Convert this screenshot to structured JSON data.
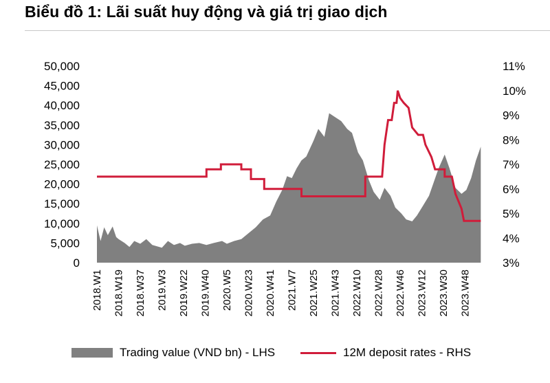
{
  "title": "Biểu đồ 1: Lãi suất huy động và giá trị giao dịch",
  "chart_data": {
    "type": "area",
    "legend_position": "bottom",
    "grid": false,
    "left_axis": {
      "min": 0,
      "max": 50000,
      "ticks": [
        "0",
        "5,000",
        "10,000",
        "15,000",
        "20,000",
        "25,000",
        "30,000",
        "35,000",
        "40,000",
        "45,000",
        "50,000"
      ]
    },
    "right_axis": {
      "min": 3,
      "max": 11,
      "ticks": [
        "3%",
        "4%",
        "5%",
        "6%",
        "7%",
        "8%",
        "9%",
        "10%",
        "11%"
      ]
    },
    "x_tick_labels": [
      "2018.W1",
      "2018.W19",
      "2018.W37",
      "2019.W3",
      "2019.W22",
      "2019.W40",
      "2020.W5",
      "2020.W23",
      "2020.W41",
      "2021.W7",
      "2021.W25",
      "2021.W43",
      "2022.W10",
      "2022.W28",
      "2022.W46",
      "2023.W12",
      "2023.W30",
      "2023.W48"
    ],
    "series": [
      {
        "name": "Trading value (VND bn) - LHS",
        "axis": "left",
        "kind": "area",
        "color": "#808080",
        "points": [
          [
            "2018.W1",
            9500
          ],
          [
            "2018.W4",
            5500
          ],
          [
            "2018.W7",
            9000
          ],
          [
            "2018.W10",
            7000
          ],
          [
            "2018.W14",
            9200
          ],
          [
            "2018.W17",
            6500
          ],
          [
            "2018.W19",
            6000
          ],
          [
            "2018.W24",
            5000
          ],
          [
            "2018.W28",
            4000
          ],
          [
            "2018.W32",
            5500
          ],
          [
            "2018.W37",
            4800
          ],
          [
            "2018.W42",
            6000
          ],
          [
            "2018.W47",
            4500
          ],
          [
            "2019.W3",
            3800
          ],
          [
            "2019.W8",
            5500
          ],
          [
            "2019.W13",
            4500
          ],
          [
            "2019.W18",
            5000
          ],
          [
            "2019.W22",
            4300
          ],
          [
            "2019.W28",
            4800
          ],
          [
            "2019.W34",
            5000
          ],
          [
            "2019.W40",
            4500
          ],
          [
            "2019.W46",
            5000
          ],
          [
            "2020.W1",
            5500
          ],
          [
            "2020.W5",
            4800
          ],
          [
            "2020.W11",
            5500
          ],
          [
            "2020.W17",
            6000
          ],
          [
            "2020.W23",
            7500
          ],
          [
            "2020.W29",
            9000
          ],
          [
            "2020.W35",
            11000
          ],
          [
            "2020.W41",
            12000
          ],
          [
            "2020.W46",
            15500
          ],
          [
            "2020.W51",
            18500
          ],
          [
            "2021.W3",
            22000
          ],
          [
            "2021.W7",
            21500
          ],
          [
            "2021.W11",
            24000
          ],
          [
            "2021.W15",
            26000
          ],
          [
            "2021.W19",
            27000
          ],
          [
            "2021.W25",
            31000
          ],
          [
            "2021.W29",
            34000
          ],
          [
            "2021.W34",
            32000
          ],
          [
            "2021.W38",
            38000
          ],
          [
            "2021.W43",
            37000
          ],
          [
            "2021.W48",
            36000
          ],
          [
            "2022.W1",
            34000
          ],
          [
            "2022.W5",
            33000
          ],
          [
            "2022.W10",
            28000
          ],
          [
            "2022.W14",
            26000
          ],
          [
            "2022.W19",
            21000
          ],
          [
            "2022.W23",
            18000
          ],
          [
            "2022.W28",
            16000
          ],
          [
            "2022.W32",
            19000
          ],
          [
            "2022.W37",
            17000
          ],
          [
            "2022.W41",
            14000
          ],
          [
            "2022.W46",
            12500
          ],
          [
            "2022.W50",
            11000
          ],
          [
            "2023.W3",
            10500
          ],
          [
            "2023.W7",
            12000
          ],
          [
            "2023.W12",
            14500
          ],
          [
            "2023.W17",
            17000
          ],
          [
            "2023.W21",
            20500
          ],
          [
            "2023.W25",
            24000
          ],
          [
            "2023.W30",
            27500
          ],
          [
            "2023.W34",
            24000
          ],
          [
            "2023.W39",
            19000
          ],
          [
            "2023.W44",
            17500
          ],
          [
            "2023.W48",
            18500
          ],
          [
            "2023.W52",
            21500
          ],
          [
            "2024.W4",
            26000
          ],
          [
            "2024.W8",
            29500
          ]
        ]
      },
      {
        "name": "12M deposit rates - RHS",
        "axis": "right",
        "kind": "line",
        "color": "#d01c3a",
        "points": [
          [
            "2018.W1",
            6.5
          ],
          [
            "2019.W40",
            6.5
          ],
          [
            "2019.W40",
            6.8
          ],
          [
            "2019.W52",
            6.8
          ],
          [
            "2019.W52",
            7.0
          ],
          [
            "2020.W17",
            7.0
          ],
          [
            "2020.W17",
            6.8
          ],
          [
            "2020.W25",
            6.8
          ],
          [
            "2020.W25",
            6.4
          ],
          [
            "2020.W36",
            6.4
          ],
          [
            "2020.W36",
            6.0
          ],
          [
            "2021.W15",
            6.0
          ],
          [
            "2021.W15",
            5.7
          ],
          [
            "2022.W16",
            5.7
          ],
          [
            "2022.W16",
            6.5
          ],
          [
            "2022.W30",
            6.5
          ],
          [
            "2022.W32",
            7.8
          ],
          [
            "2022.W35",
            8.8
          ],
          [
            "2022.W38",
            8.8
          ],
          [
            "2022.W40",
            9.5
          ],
          [
            "2022.W42",
            9.5
          ],
          [
            "2022.W43",
            10.0
          ],
          [
            "2022.W45",
            9.7
          ],
          [
            "2022.W48",
            9.5
          ],
          [
            "2022.W52",
            9.3
          ],
          [
            "2023.W3",
            8.5
          ],
          [
            "2023.W8",
            8.2
          ],
          [
            "2023.W12",
            8.2
          ],
          [
            "2023.W14",
            7.8
          ],
          [
            "2023.W19",
            7.3
          ],
          [
            "2023.W22",
            6.8
          ],
          [
            "2023.W30",
            6.8
          ],
          [
            "2023.W30",
            6.5
          ],
          [
            "2023.W36",
            6.5
          ],
          [
            "2023.W39",
            5.8
          ],
          [
            "2023.W44",
            5.2
          ],
          [
            "2023.W46",
            4.7
          ],
          [
            "2024.W8",
            4.7
          ]
        ]
      }
    ]
  }
}
